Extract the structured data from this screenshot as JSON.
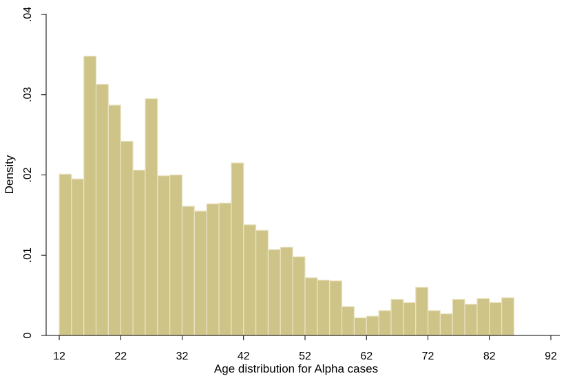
{
  "chart_data": {
    "type": "bar",
    "subtype": "histogram",
    "xlabel": "Age distribution for Alpha cases",
    "ylabel": "Density",
    "xlim": [
      10,
      92
    ],
    "ylim": [
      0,
      0.04
    ],
    "xticks": [
      12,
      22,
      32,
      42,
      52,
      62,
      72,
      82,
      92
    ],
    "xtick_labels": [
      "12",
      "22",
      "32",
      "42",
      "52",
      "62",
      "72",
      "82",
      "92"
    ],
    "yticks": [
      0,
      0.01,
      0.02,
      0.03,
      0.04
    ],
    "ytick_labels": [
      "0",
      ".01",
      ".02",
      ".03",
      ".04"
    ],
    "bin_start": 12,
    "bin_width": 2,
    "values": [
      0.0201,
      0.0195,
      0.0348,
      0.0313,
      0.0287,
      0.0242,
      0.0206,
      0.0295,
      0.0199,
      0.02,
      0.0161,
      0.0155,
      0.0164,
      0.0165,
      0.0215,
      0.0138,
      0.0131,
      0.0107,
      0.011,
      0.0098,
      0.0072,
      0.0069,
      0.0068,
      0.0036,
      0.0022,
      0.0024,
      0.0031,
      0.0045,
      0.0041,
      0.006,
      0.0031,
      0.0027,
      0.0045,
      0.0039,
      0.0046,
      0.0041,
      0.0047
    ],
    "grid": false,
    "bar_fill": "#cfc488",
    "bar_edge": "#ebe4c4"
  }
}
